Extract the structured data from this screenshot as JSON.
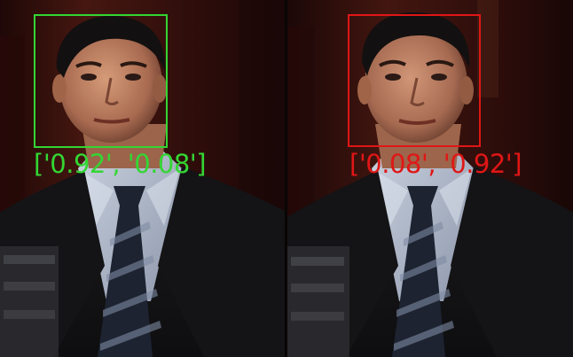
{
  "image": {
    "description_free": true,
    "panels": [
      {
        "id": "left",
        "label": "['0.92', '0.08']",
        "box_color": "#33d633",
        "label_color": "#33d633"
      },
      {
        "id": "right",
        "label": "['0.08', '0.92']",
        "box_color": "#e01616",
        "label_color": "#e01616"
      }
    ],
    "colors": {
      "background": "#2a0d0b",
      "suit": "#151313",
      "shirt": "#b9c3d4",
      "tie": "#1e2533",
      "skin": "#b98263",
      "hair": "#121010"
    }
  }
}
